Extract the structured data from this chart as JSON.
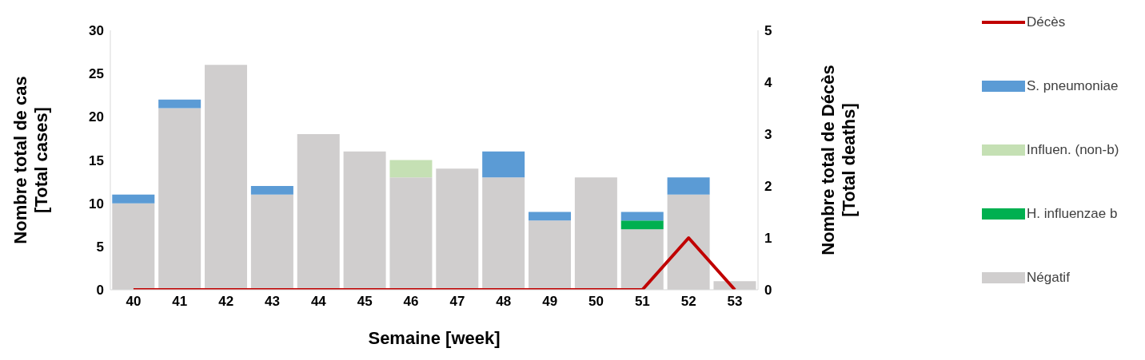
{
  "chart_data": {
    "type": "bar",
    "stacked": true,
    "xlabel": "Semaine [week]",
    "ylabel": "Nombre total de cas\n[Total cases]",
    "y2label": "Nombre total de Décès\n[Total deaths]",
    "categories": [
      "40",
      "41",
      "42",
      "43",
      "44",
      "45",
      "46",
      "47",
      "48",
      "49",
      "50",
      "51",
      "52",
      "53"
    ],
    "series": [
      {
        "name": "Négatif",
        "color": "#d0cece",
        "values": [
          10,
          21,
          26,
          11,
          18,
          16,
          13,
          14,
          13,
          8,
          13,
          7,
          11,
          1
        ]
      },
      {
        "name": "H. influenzae b",
        "color": "#00b050",
        "values": [
          0,
          0,
          0,
          0,
          0,
          0,
          0,
          0,
          0,
          0,
          0,
          1,
          0,
          0
        ]
      },
      {
        "name": "Influen. (non-b)",
        "color": "#c5e0b4",
        "values": [
          0,
          0,
          0,
          0,
          0,
          0,
          2,
          0,
          0,
          0,
          0,
          0,
          0,
          0
        ]
      },
      {
        "name": "S. pneumoniae",
        "color": "#5b9bd5",
        "values": [
          1,
          1,
          0,
          1,
          0,
          0,
          0,
          0,
          3,
          1,
          0,
          1,
          2,
          0
        ]
      },
      {
        "name": "Décès",
        "type": "line",
        "axis": "y2",
        "color": "#c00000",
        "values": [
          0,
          0,
          0,
          0,
          0,
          0,
          0,
          0,
          0,
          0,
          0,
          0,
          1,
          0
        ]
      }
    ],
    "ylim": [
      0,
      30
    ],
    "yticks": [
      0,
      5,
      10,
      15,
      20,
      25,
      30
    ],
    "y2lim": [
      0,
      5
    ],
    "y2ticks": [
      0,
      1,
      2,
      3,
      4,
      5
    ],
    "grid": false,
    "legend": "right",
    "marker": "none",
    "line_style": "solid"
  }
}
